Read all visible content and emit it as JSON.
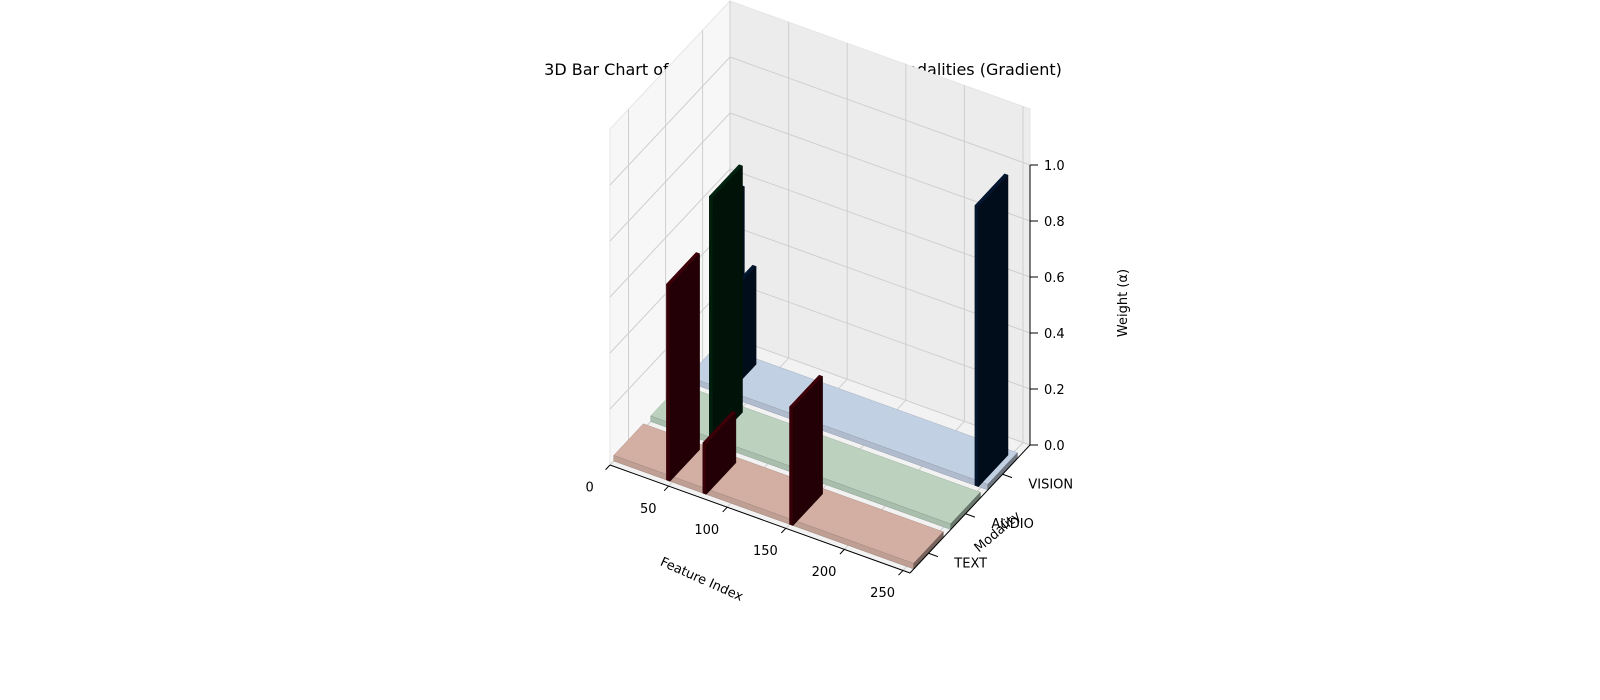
{
  "chart_data": {
    "type": "bar3d",
    "title": "3D Bar Chart of Feature Importance Across Modalities (Gradient)",
    "xlabel": "Feature Index",
    "ylabel": "Modality",
    "zlabel": "Weight (α)",
    "x_ticks": [
      "0",
      "50",
      "100",
      "150",
      "200",
      "250"
    ],
    "y_ticks": [
      "TEXT",
      "AUDIO",
      "VISION"
    ],
    "z_ticks": [
      "0.0",
      "0.2",
      "0.4",
      "0.6",
      "0.8",
      "1.0"
    ],
    "xlim": [
      0,
      256
    ],
    "zlim": [
      0,
      1
    ],
    "grid": true,
    "series": [
      {
        "name": "TEXT",
        "color": "#c9a79b",
        "peak_color": "#3a0008",
        "bars": [
          {
            "x": 0,
            "width": 256,
            "value": 0.02
          },
          {
            "x": 45,
            "width": 3,
            "value": 0.7
          },
          {
            "x": 76,
            "width": 3,
            "value": 0.18
          },
          {
            "x": 150,
            "width": 3,
            "value": 0.42
          }
        ]
      },
      {
        "name": "AUDIO",
        "color": "#b3c8b6",
        "peak_color": "#01200e",
        "bars": [
          {
            "x": 0,
            "width": 256,
            "value": 0.02
          },
          {
            "x": 50,
            "width": 3,
            "value": 0.88
          }
        ]
      },
      {
        "name": "VISION",
        "color": "#b9c6d8",
        "peak_color": "#03152e",
        "bars": [
          {
            "x": 0,
            "width": 256,
            "value": 0.02
          },
          {
            "x": 20,
            "width": 3,
            "value": 0.62
          },
          {
            "x": 30,
            "width": 3,
            "value": 0.35
          },
          {
            "x": 245,
            "width": 3,
            "value": 1.0
          }
        ]
      }
    ]
  }
}
